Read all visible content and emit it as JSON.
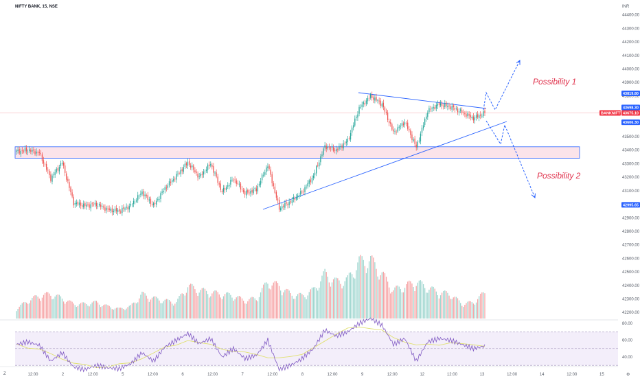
{
  "header": {
    "title": "NIFTY BANK, 15, NSE",
    "currency": "INR"
  },
  "price_axis": {
    "ticks": [
      "44400.00",
      "44300.00",
      "44200.00",
      "44100.00",
      "44000.00",
      "43900.00",
      "43800.00",
      "43700.00",
      "43600.00",
      "43500.00",
      "43400.00",
      "43300.00",
      "43200.00",
      "43100.00",
      "43000.00",
      "42900.00",
      "42800.00",
      "42700.00",
      "42600.00",
      "42500.00",
      "42400.00",
      "42300.00",
      "42200.00"
    ],
    "tags": [
      {
        "label": "43819.80",
        "value": 43819.8,
        "color": "#2962ff"
      },
      {
        "label": "43698.30",
        "value": 43698.3,
        "color": "#2962ff"
      },
      {
        "label": "BANKNIFTY",
        "value": 43675.1,
        "color": "#f23645"
      },
      {
        "label": "43675.10",
        "value": 43675.1,
        "color": "#f23645"
      },
      {
        "label": "43606.30",
        "value": 43606.3,
        "color": "#2962ff"
      },
      {
        "label": "42995.65",
        "value": 42995.65,
        "color": "#2962ff"
      }
    ]
  },
  "rsi_axis": {
    "ticks": [
      "80.00",
      "60.00",
      "40.00"
    ],
    "upper_band": 70,
    "lower_band": 30
  },
  "time_axis": {
    "labels": [
      "12:00",
      "2",
      "12:00",
      "5",
      "12:00",
      "6",
      "12:00",
      "7",
      "12:00",
      "8",
      "12:00",
      "9",
      "12:00",
      "12",
      "12:00",
      "13",
      "12:00",
      "14",
      "12:00",
      "15"
    ]
  },
  "annotations": {
    "possibility_1": "Possibility 1",
    "possibility_2": "Possibility 2"
  },
  "footer": {
    "left_glyph": "Z",
    "right_glyph": "⚙"
  },
  "colors": {
    "up": "#26a69a",
    "down": "#ef5350",
    "volume_up": "#9fd6cf",
    "volume_down": "#f6a3a5",
    "rsi_line": "#7e57c2",
    "rsi_ma": "#e0e070",
    "zone_fill": "#fbe3ea",
    "zone_border": "#2962ff",
    "trendline": "#2962ff",
    "annotation": "#e0314b"
  },
  "chart_data": {
    "type": "candlestick",
    "title": "NIFTY BANK, 15, NSE",
    "ylim": [
      42780,
      44480
    ],
    "demand_zone": [
      43340,
      43425
    ],
    "current_price": 43675.1,
    "anchors": [
      43390,
      43400,
      43380,
      43190,
      43310,
      43010,
      42990,
      43000,
      42960,
      42950,
      42990,
      43090,
      42990,
      43120,
      43210,
      43310,
      43200,
      43300,
      43090,
      43190,
      43080,
      43110,
      43290,
      42970,
      43020,
      43090,
      43210,
      43430,
      43400,
      43470,
      43710,
      43800,
      43740,
      43530,
      43610,
      43420,
      43690,
      43740,
      43720,
      43680,
      43635,
      43675
    ],
    "rsi": [
      55,
      58,
      54,
      35,
      45,
      28,
      25,
      30,
      27,
      26,
      32,
      45,
      35,
      52,
      60,
      68,
      56,
      62,
      40,
      50,
      38,
      42,
      60,
      25,
      30,
      38,
      50,
      72,
      65,
      70,
      80,
      86,
      78,
      55,
      62,
      35,
      58,
      62,
      60,
      55,
      50,
      53
    ],
    "volume": [
      12,
      22,
      28,
      30,
      25,
      18,
      18,
      20,
      15,
      12,
      15,
      30,
      25,
      22,
      20,
      40,
      35,
      32,
      30,
      28,
      22,
      25,
      45,
      40,
      30,
      28,
      35,
      55,
      45,
      48,
      70,
      72,
      55,
      35,
      40,
      45,
      38,
      32,
      30,
      18,
      20,
      32
    ],
    "volume_scale_max": 100
  }
}
